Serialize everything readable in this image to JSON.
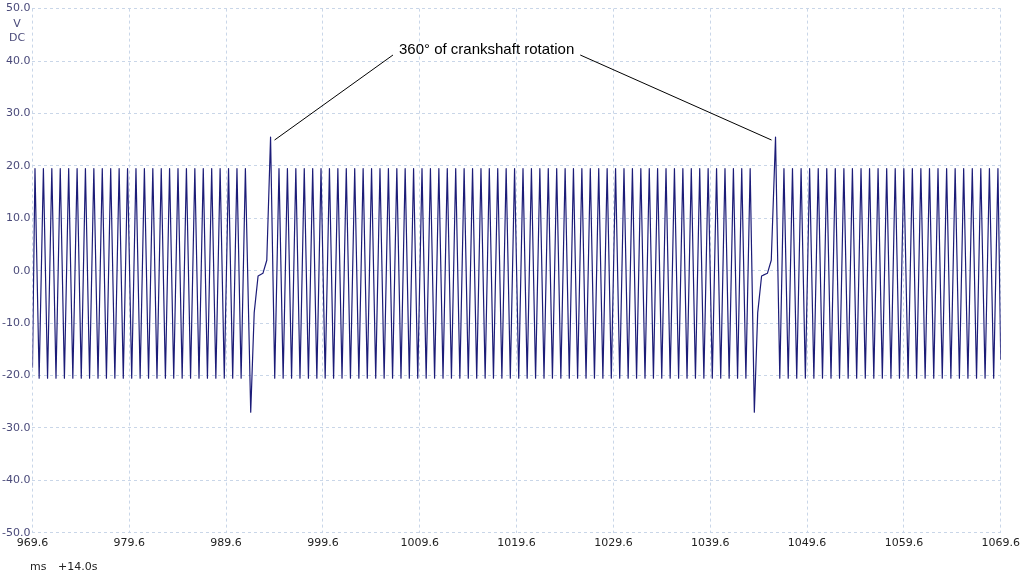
{
  "chart_data": {
    "type": "line",
    "xlabel": "ms",
    "ylabel": "V DC",
    "annotations": [
      {
        "text": "360° of crankshaft rotation",
        "x": 994.19,
        "y": 25.5
      },
      "+14.0s"
    ],
    "xlim": [
      969.6,
      1069.6
    ],
    "xticks": [
      969.6,
      979.6,
      989.6,
      999.6,
      1009.6,
      1019.6,
      1029.6,
      1039.6,
      1049.6,
      1059.6,
      1069.6
    ],
    "ylim": [
      -50,
      50
    ],
    "yticks": [
      {
        "value": -50,
        "label": "-50.0"
      },
      {
        "value": -40,
        "label": "-40.0"
      },
      {
        "value": -30,
        "label": "-30.0"
      },
      {
        "value": -20,
        "label": "-20.0"
      },
      {
        "value": -10,
        "label": "-10.0"
      },
      {
        "value": 0,
        "label": "0.0"
      },
      {
        "value": 10,
        "label": "10.0"
      },
      {
        "value": 20,
        "label": "20.0"
      },
      {
        "value": 30,
        "label": "30.0"
      },
      {
        "value": 40,
        "label": "40.0"
      },
      {
        "value": 50,
        "label": "50.0"
      }
    ],
    "grid": true,
    "legend": false,
    "marker": "none",
    "line_style": "solid",
    "series": [
      {
        "color": "#1c1c78",
        "x": [
          969.6,
          969.86,
          970.29,
          970.73,
          971.16,
          971.6,
          972.03,
          972.47,
          972.9,
          973.34,
          973.77,
          974.21,
          974.64,
          975.07,
          975.5,
          975.94,
          976.37,
          976.81,
          977.24,
          977.68,
          978.11,
          978.55,
          978.98,
          979.42,
          979.85,
          980.29,
          980.72,
          981.16,
          981.59,
          982.03,
          982.46,
          982.9,
          983.33,
          983.76,
          984.19,
          984.63,
          985.06,
          985.5,
          985.93,
          986.37,
          986.8,
          987.24,
          987.67,
          988.11,
          988.54,
          988.98,
          989.41,
          989.85,
          990.28,
          990.72,
          991.15,
          991.59,
          992.14,
          992.5,
          992.9,
          993.4,
          993.8,
          994.19,
          994.62,
          995.06,
          995.49,
          995.93,
          996.36,
          996.8,
          997.23,
          997.67,
          998.1,
          998.54,
          998.97,
          999.4,
          999.83,
          1000.27,
          1000.7,
          1001.14,
          1001.57,
          1002.01,
          1002.44,
          1002.88,
          1003.31,
          1003.75,
          1004.18,
          1004.62,
          1005.05,
          1005.49,
          1005.92,
          1006.36,
          1006.79,
          1007.23,
          1007.66,
          1008.09,
          1008.52,
          1008.96,
          1009.39,
          1009.83,
          1010.26,
          1010.7,
          1011.13,
          1011.57,
          1012.0,
          1012.44,
          1012.87,
          1013.31,
          1013.74,
          1014.18,
          1014.61,
          1015.05,
          1015.48,
          1015.92,
          1016.35,
          1016.78,
          1017.21,
          1017.65,
          1018.08,
          1018.52,
          1018.95,
          1019.39,
          1019.82,
          1020.26,
          1020.69,
          1021.13,
          1021.56,
          1022.0,
          1022.43,
          1022.87,
          1023.3,
          1023.74,
          1024.17,
          1024.61,
          1025.04,
          1025.47,
          1025.9,
          1026.34,
          1026.77,
          1027.21,
          1027.64,
          1028.08,
          1028.51,
          1028.95,
          1029.38,
          1029.82,
          1030.25,
          1030.69,
          1031.12,
          1031.56,
          1031.99,
          1032.43,
          1032.86,
          1033.3,
          1033.73,
          1034.16,
          1034.59,
          1035.03,
          1035.46,
          1035.9,
          1036.33,
          1036.77,
          1037.2,
          1037.64,
          1038.07,
          1038.51,
          1038.94,
          1039.38,
          1039.81,
          1040.25,
          1040.68,
          1041.12,
          1041.55,
          1041.99,
          1042.42,
          1042.85,
          1043.28,
          1043.72,
          1044.15,
          1044.5,
          1044.9,
          1045.5,
          1045.9,
          1046.34,
          1046.78,
          1047.21,
          1047.65,
          1048.09,
          1048.53,
          1048.98,
          1049.42,
          1049.86,
          1050.3,
          1050.75,
          1051.19,
          1051.63,
          1052.07,
          1052.51,
          1052.95,
          1053.4,
          1053.84,
          1054.28,
          1054.72,
          1055.17,
          1055.61,
          1056.05,
          1056.49,
          1056.93,
          1057.37,
          1057.82,
          1058.26,
          1058.7,
          1059.14,
          1059.59,
          1060.03,
          1060.47,
          1060.91,
          1061.35,
          1061.79,
          1062.24,
          1062.68,
          1063.12,
          1063.56,
          1064.01,
          1064.45,
          1064.89,
          1065.33,
          1065.77,
          1066.21,
          1066.66,
          1067.1,
          1067.54,
          1067.98,
          1068.43,
          1068.87,
          1069.31,
          1069.6
        ],
        "values": [
          -18.5,
          19.5,
          -20.5,
          19.5,
          -20.5,
          19.5,
          -20.5,
          19.5,
          -20.5,
          19.5,
          -20.5,
          19.5,
          -20.5,
          19.5,
          -20.5,
          19.5,
          -20.5,
          19.5,
          -20.5,
          19.5,
          -20.5,
          19.5,
          -20.5,
          19.5,
          -20.5,
          19.5,
          -20.5,
          19.5,
          -20.5,
          19.5,
          -20.5,
          19.5,
          -20.5,
          19.5,
          -20.5,
          19.5,
          -20.5,
          19.5,
          -20.5,
          19.5,
          -20.5,
          19.5,
          -20.5,
          19.5,
          -20.5,
          19.5,
          -20.5,
          19.5,
          -20.5,
          19.5,
          -20.5,
          19.5,
          -27,
          -8,
          -1,
          -0.5,
          2,
          25.5,
          -20.5,
          19.5,
          -20.5,
          19.5,
          -20.5,
          19.5,
          -20.5,
          19.5,
          -20.5,
          19.5,
          -20.5,
          19.5,
          -20.5,
          19.5,
          -20.5,
          19.5,
          -20.5,
          19.5,
          -20.5,
          19.5,
          -20.5,
          19.5,
          -20.5,
          19.5,
          -20.5,
          19.5,
          -20.5,
          19.5,
          -20.5,
          19.5,
          -20.5,
          19.5,
          -20.5,
          19.5,
          -20.5,
          19.5,
          -20.5,
          19.5,
          -20.5,
          19.5,
          -20.5,
          19.5,
          -20.5,
          19.5,
          -20.5,
          19.5,
          -20.5,
          19.5,
          -20.5,
          19.5,
          -20.5,
          19.5,
          -20.5,
          19.5,
          -20.5,
          19.5,
          -20.5,
          19.5,
          -20.5,
          19.5,
          -20.5,
          19.5,
          -20.5,
          19.5,
          -20.5,
          19.5,
          -20.5,
          19.5,
          -20.5,
          19.5,
          -20.5,
          19.5,
          -20.5,
          19.5,
          -20.5,
          19.5,
          -20.5,
          19.5,
          -20.5,
          19.5,
          -20.5,
          19.5,
          -20.5,
          19.5,
          -20.5,
          19.5,
          -20.5,
          19.5,
          -20.5,
          19.5,
          -20.5,
          19.5,
          -20.5,
          19.5,
          -20.5,
          19.5,
          -20.5,
          19.5,
          -20.5,
          19.5,
          -20.5,
          19.5,
          -20.5,
          19.5,
          -20.5,
          19.5,
          -20.5,
          19.5,
          -20.5,
          19.5,
          -20.5,
          19.5,
          -20.5,
          19.5,
          -27,
          -8,
          -1,
          -0.5,
          2,
          25.5,
          -20.5,
          19.5,
          -20.5,
          19.5,
          -20.5,
          19.5,
          -20.5,
          19.5,
          -20.5,
          19.5,
          -20.5,
          19.5,
          -20.5,
          19.5,
          -20.5,
          19.5,
          -20.5,
          19.5,
          -20.5,
          19.5,
          -20.5,
          19.5,
          -20.5,
          19.5,
          -20.5,
          19.5,
          -20.5,
          19.5,
          -20.5,
          19.5,
          -20.5,
          19.5,
          -20.5,
          19.5,
          -20.5,
          19.5,
          -20.5,
          19.5,
          -20.5,
          19.5,
          -20.5,
          19.5,
          -20.5,
          19.5,
          -20.5,
          19.5,
          -20.5,
          19.5,
          -20.5,
          19.5,
          -20.5,
          19.5,
          -17
        ]
      }
    ]
  }
}
